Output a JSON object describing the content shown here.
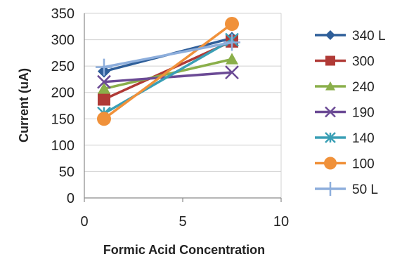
{
  "chart_data": {
    "type": "line",
    "xlabel": "Formic Acid Concentration",
    "ylabel": "Current (uA)",
    "xlim": [
      0,
      10
    ],
    "ylim": [
      0,
      350
    ],
    "x_ticks": [
      0,
      5,
      10
    ],
    "y_ticks": [
      0,
      50,
      100,
      150,
      200,
      250,
      300,
      350
    ],
    "grid": "horizontal",
    "legend": "right",
    "series": [
      {
        "name": "340 L",
        "marker": "diamond",
        "color": "#2E5E99",
        "x": [
          1,
          7.5
        ],
        "y": [
          240,
          303
        ]
      },
      {
        "name": "300",
        "marker": "square",
        "color": "#B03A36",
        "x": [
          1,
          7.5
        ],
        "y": [
          187,
          297
        ]
      },
      {
        "name": "240",
        "marker": "triangle",
        "color": "#8AAF4A",
        "x": [
          1,
          7.5
        ],
        "y": [
          207,
          263
        ]
      },
      {
        "name": "190",
        "marker": "x",
        "color": "#6B4A95",
        "x": [
          1,
          7.5
        ],
        "y": [
          220,
          238
        ]
      },
      {
        "name": "140",
        "marker": "star",
        "color": "#3A9FB5",
        "x": [
          1,
          7.5
        ],
        "y": [
          160,
          300
        ]
      },
      {
        "name": "100",
        "marker": "circle",
        "color": "#F0913A",
        "x": [
          1,
          7.5
        ],
        "y": [
          150,
          330
        ]
      },
      {
        "name": "50 L",
        "marker": "plus",
        "color": "#8DAEDC",
        "x": [
          1,
          7.5
        ],
        "y": [
          248,
          295
        ]
      }
    ]
  }
}
